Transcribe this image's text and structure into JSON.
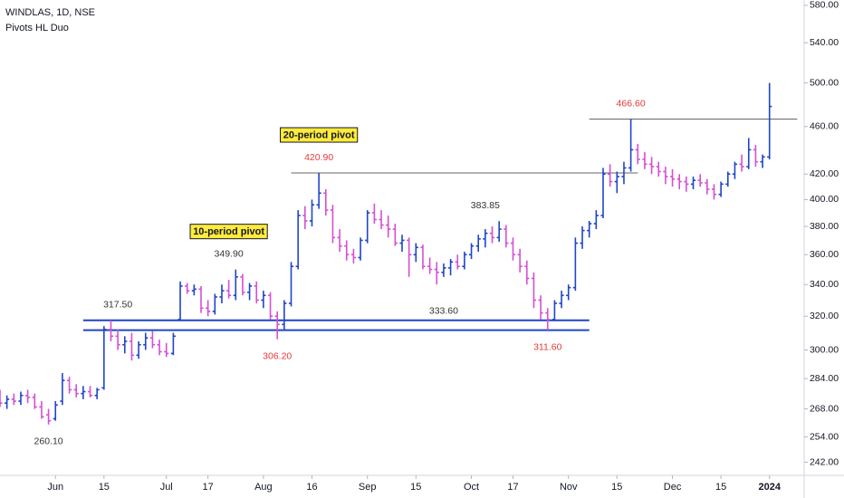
{
  "chart_data": {
    "type": "ohlc",
    "title": "WINDLAS, 1D, NSE",
    "subtitle": "Pivots HL Duo",
    "log_scale": true,
    "up_color": "#1f45c9",
    "down_color": "#d64fd2",
    "xlim": [
      0,
      116
    ],
    "ylim": [
      236,
      586
    ],
    "yticks": [
      {
        "value": 580,
        "label": "580.00"
      },
      {
        "value": 540,
        "label": "540.00"
      },
      {
        "value": 500,
        "label": "500.00"
      },
      {
        "value": 460,
        "label": "460.00"
      },
      {
        "value": 420,
        "label": "420.00"
      },
      {
        "value": 400,
        "label": "400.00"
      },
      {
        "value": 380,
        "label": "380.00"
      },
      {
        "value": 360,
        "label": "360.00"
      },
      {
        "value": 340,
        "label": "340.00"
      },
      {
        "value": 320,
        "label": "320.00"
      },
      {
        "value": 300,
        "label": "300.00"
      },
      {
        "value": 284,
        "label": "284.00"
      },
      {
        "value": 268,
        "label": "268.00"
      },
      {
        "value": 254,
        "label": "254.00"
      },
      {
        "value": 242,
        "label": "242.00"
      }
    ],
    "xticks": [
      {
        "value": 8,
        "label": "Jun"
      },
      {
        "value": 15,
        "label": "15"
      },
      {
        "value": 24,
        "label": "Jul"
      },
      {
        "value": 30,
        "label": "17"
      },
      {
        "value": 38,
        "label": "Aug"
      },
      {
        "value": 45,
        "label": "16"
      },
      {
        "value": 53,
        "label": "Sep"
      },
      {
        "value": 60,
        "label": "15"
      },
      {
        "value": 68,
        "label": "Oct"
      },
      {
        "value": 74,
        "label": "17"
      },
      {
        "value": 82,
        "label": "Nov"
      },
      {
        "value": 89,
        "label": "15"
      },
      {
        "value": 97,
        "label": "Dec"
      },
      {
        "value": 104,
        "label": "15"
      },
      {
        "value": 111,
        "label": "2024"
      }
    ],
    "open": [
      274,
      271,
      273,
      272,
      275,
      274,
      269,
      265,
      263,
      272,
      283,
      278,
      276,
      277,
      275,
      279,
      312,
      308,
      303,
      305,
      297,
      303,
      307,
      303,
      299,
      298,
      318,
      339,
      336,
      337,
      325,
      323,
      332,
      336,
      333,
      345,
      335,
      339,
      330,
      333,
      320,
      315,
      328,
      352,
      388,
      384,
      396,
      405,
      392,
      372,
      366,
      360,
      358,
      370,
      390,
      385,
      381,
      378,
      368,
      370,
      360,
      365,
      352,
      350,
      348,
      351,
      355,
      352,
      360,
      366,
      371,
      375,
      372,
      378,
      368,
      360,
      352,
      344,
      330,
      322,
      318,
      328,
      333,
      338,
      368,
      377,
      382,
      388,
      420,
      414,
      418,
      425,
      440,
      432,
      428,
      426,
      422,
      418,
      416,
      414,
      412,
      415,
      413,
      408,
      404,
      412,
      420,
      428,
      426,
      440,
      430,
      434
    ],
    "high": [
      278,
      275,
      276,
      277,
      278,
      276,
      272,
      268,
      272,
      287,
      285,
      281,
      280,
      280,
      279,
      314,
      317.5,
      312,
      308,
      310,
      305,
      310,
      311,
      306,
      304,
      310,
      342,
      341,
      340,
      339,
      330,
      334,
      340,
      343,
      349.9,
      347,
      341,
      342,
      336,
      335,
      323,
      330,
      355,
      392,
      395,
      400,
      420.9,
      408,
      396,
      378,
      370,
      364,
      372,
      392,
      397,
      392,
      388,
      382,
      374,
      372,
      368,
      367,
      358,
      355,
      354,
      357,
      360,
      362,
      368,
      374,
      378,
      380,
      383.85,
      381,
      372,
      364,
      356,
      348,
      333,
      325,
      330,
      336,
      340,
      372,
      380,
      384,
      392,
      425,
      428,
      422,
      430,
      466.6,
      445,
      438,
      434,
      430,
      426,
      424,
      420,
      418,
      418,
      420,
      416,
      412,
      414,
      422,
      430,
      436,
      450,
      444,
      436,
      500
    ],
    "low": [
      269,
      268,
      270,
      270,
      271,
      268,
      263,
      260.1,
      262,
      270,
      276,
      274,
      273,
      274,
      273,
      278,
      305,
      300,
      298,
      294,
      295,
      300,
      301,
      297,
      296,
      297,
      317,
      334,
      333,
      322,
      320,
      321,
      328,
      331,
      330,
      333,
      330,
      328,
      325,
      318,
      306.2,
      312,
      326,
      350,
      378,
      380,
      393,
      388,
      368,
      362,
      356,
      354,
      356,
      368,
      382,
      378,
      372,
      366,
      362,
      345,
      355,
      350,
      347,
      340,
      345,
      346,
      350,
      350,
      357,
      362,
      365,
      368,
      369,
      365,
      356,
      348,
      340,
      325,
      318,
      311.6,
      317,
      325,
      330,
      336,
      364,
      372,
      378,
      386,
      410,
      405,
      412,
      422,
      428,
      424,
      420,
      418,
      412,
      410,
      408,
      406,
      408,
      410,
      404,
      400,
      402,
      410,
      416,
      422,
      424,
      426,
      425,
      432
    ],
    "close": [
      271,
      273,
      272,
      275,
      274,
      269,
      264,
      262,
      270,
      283,
      278,
      276,
      277,
      275,
      278,
      312,
      308,
      303,
      305,
      297,
      303,
      307,
      303,
      299,
      298,
      308,
      339,
      336,
      337,
      325,
      323,
      332,
      336,
      333,
      345,
      335,
      339,
      330,
      333,
      320,
      315,
      328,
      352,
      388,
      384,
      396,
      405,
      392,
      372,
      366,
      360,
      358,
      370,
      390,
      385,
      381,
      378,
      368,
      370,
      360,
      365,
      352,
      350,
      348,
      351,
      355,
      352,
      360,
      366,
      371,
      375,
      372,
      378,
      368,
      360,
      352,
      344,
      330,
      322,
      318,
      328,
      333,
      338,
      368,
      377,
      382,
      388,
      420,
      414,
      418,
      425,
      440,
      432,
      428,
      426,
      422,
      418,
      416,
      414,
      412,
      415,
      413,
      408,
      404,
      412,
      420,
      428,
      426,
      440,
      430,
      434,
      478
    ],
    "levels": [
      {
        "value": 317.5,
        "from": 12,
        "to": 85,
        "color": "#1f45c9"
      },
      {
        "value": 311.6,
        "from": 12,
        "to": 85,
        "color": "#1f45c9"
      },
      {
        "value": 420.9,
        "from": 42,
        "to": 92,
        "color": "#666666"
      },
      {
        "value": 466.6,
        "from": 85,
        "to": 115,
        "color": "#666666"
      }
    ],
    "pivots": [
      {
        "label": "260.10",
        "value": 260.1,
        "index": 7,
        "pos": "below",
        "color": "#333333"
      },
      {
        "label": "317.50",
        "value": 317.5,
        "index": 17,
        "pos": "above",
        "color": "#333333"
      },
      {
        "label": "349.90",
        "value": 349.9,
        "index": 33,
        "pos": "above",
        "color": "#333333"
      },
      {
        "label": "306.20",
        "value": 306.2,
        "index": 40,
        "pos": "below",
        "color": "#e53935"
      },
      {
        "label": "420.90",
        "value": 420.9,
        "index": 46,
        "pos": "above",
        "color": "#e53935"
      },
      {
        "label": "383.85",
        "value": 383.85,
        "index": 70,
        "pos": "above",
        "color": "#333333"
      },
      {
        "label": "311.60",
        "value": 311.6,
        "index": 79,
        "pos": "below",
        "color": "#e53935"
      },
      {
        "label": "466.60",
        "value": 466.6,
        "index": 91,
        "pos": "above",
        "color": "#e53935"
      },
      {
        "label": "333.60",
        "value": 333.6,
        "index": 64,
        "level": 0,
        "color": "#333333"
      }
    ],
    "callouts": [
      {
        "text": "10-period pivot",
        "pivot": 2
      },
      {
        "text": "20-period pivot",
        "pivot": 4
      }
    ]
  }
}
